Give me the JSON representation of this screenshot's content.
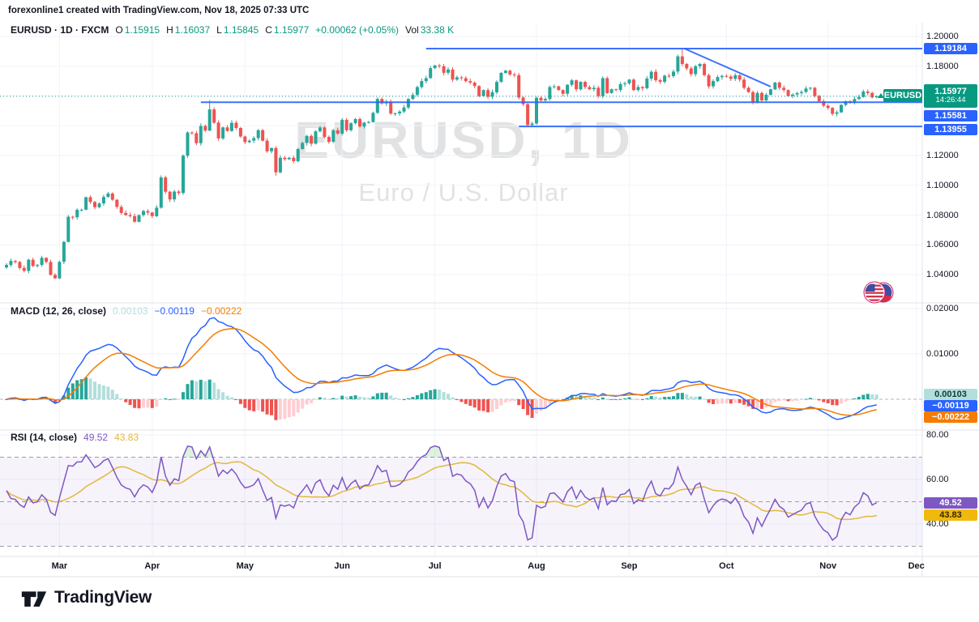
{
  "attribution": "forexonline1 created with TradingView.com, Nov 18, 2025 07:33 UTC",
  "header": {
    "symbol_line": "EURUSD · 1D · FXCM",
    "o_label": "O",
    "o": "1.15915",
    "h_label": "H",
    "h": "1.16037",
    "l_label": "L",
    "l": "1.15845",
    "c_label": "C",
    "c": "1.15977",
    "change": "+0.00062 (+0.05%)",
    "vol_label": "Vol",
    "vol": "33.38 K"
  },
  "watermark": {
    "line1": "EURUSD, 1D",
    "line2": "Euro / U.S. Dollar"
  },
  "badges": {
    "resistance": "1.19184",
    "last_price": "1.15977",
    "last_time": "14:26:44",
    "support_mid": "1.15581",
    "support_low": "1.13955",
    "symbol_label": "EURUSD",
    "macd_hist": "0.00103",
    "macd_line": "−0.00119",
    "macd_signal": "−0.00222",
    "rsi_value": "49.52",
    "rsi_ma_value": "43.83"
  },
  "macd_legend": {
    "title": "MACD (12, 26, close)",
    "hist": "0.00103",
    "macd": "−0.00119",
    "signal": "−0.00222"
  },
  "rsi_legend": {
    "title": "RSI (14, close)",
    "value": "49.52",
    "ma": "43.83"
  },
  "logo": {
    "text": "TradingView"
  },
  "palette": {
    "candle_up": "#26a69a",
    "candle_down": "#ef5350",
    "accent_teal": "#089981",
    "drawing_blue": "#2962ff",
    "macd_line": "#2962ff",
    "signal_line": "#f57c00",
    "hist_above_grow": "#26a69a",
    "hist_above_fall": "#b2dfdb",
    "hist_below_grow": "#ffcdd2",
    "hist_below_fall": "#ef5350",
    "rsi_line": "#7e57c2",
    "rsi_ma_line": "#e2b93b",
    "rsi_badge_bg": "#f0b90b",
    "grid": "#f0f3fa",
    "panel_border": "#e0e3eb",
    "text_dark": "#131722",
    "dashed": "#b2b5be",
    "band_dashed": "#9b9eab",
    "rsi_band_fill": "rgba(126,87,194,0.07)",
    "overbought_fill": "rgba(76,175,80,0.18)",
    "price_badge_bg": "#089981",
    "blue_badge_bg": "#2962ff"
  },
  "chart_data": {
    "type": "candlestick",
    "symbol": "EURUSD",
    "interval": "1D",
    "exchange": "FXCM",
    "last_bar": {
      "open": 1.15915,
      "high": 1.16037,
      "low": 1.15845,
      "close": 1.15977,
      "change": "+0.00062 (+0.05%)",
      "volume": "33.38 K"
    },
    "closes": [
      1.0465,
      1.0492,
      1.0485,
      1.0445,
      1.0425,
      1.05,
      1.0458,
      1.0465,
      1.0513,
      1.0485,
      1.0398,
      1.0375,
      1.0486,
      1.062,
      1.0789,
      1.0785,
      1.0835,
      1.0836,
      1.092,
      1.0888,
      1.0853,
      1.0878,
      1.0922,
      1.0945,
      1.0903,
      1.0855,
      1.0815,
      1.08,
      1.0793,
      1.0755,
      1.08,
      1.0827,
      1.0817,
      1.0793,
      1.085,
      1.1053,
      1.0957,
      1.0905,
      1.0958,
      1.0948,
      1.1199,
      1.1355,
      1.135,
      1.1283,
      1.1399,
      1.1368,
      1.151,
      1.1421,
      1.1315,
      1.1389,
      1.1365,
      1.142,
      1.1385,
      1.1328,
      1.129,
      1.13,
      1.1317,
      1.137,
      1.13,
      1.1228,
      1.125,
      1.1087,
      1.1185,
      1.1175,
      1.1185,
      1.1162,
      1.1244,
      1.1285,
      1.1332,
      1.128,
      1.1363,
      1.1388,
      1.1325,
      1.1292,
      1.137,
      1.1347,
      1.144,
      1.137,
      1.1417,
      1.1445,
      1.1395,
      1.142,
      1.1425,
      1.1487,
      1.158,
      1.155,
      1.1562,
      1.1482,
      1.1483,
      1.1495,
      1.1523,
      1.158,
      1.1607,
      1.166,
      1.17,
      1.172,
      1.1787,
      1.1805,
      1.18,
      1.1756,
      1.1778,
      1.171,
      1.1725,
      1.172,
      1.17,
      1.169,
      1.1667,
      1.16,
      1.164,
      1.1595,
      1.1625,
      1.1695,
      1.1755,
      1.177,
      1.1745,
      1.174,
      1.159,
      1.1545,
      1.1405,
      1.1415,
      1.1588,
      1.157,
      1.158,
      1.166,
      1.1665,
      1.164,
      1.1615,
      1.1675,
      1.1705,
      1.1645,
      1.1695,
      1.166,
      1.1645,
      1.1655,
      1.16,
      1.172,
      1.162,
      1.1645,
      1.164,
      1.168,
      1.1685,
      1.171,
      1.164,
      1.166,
      1.1652,
      1.1717,
      1.1763,
      1.1706,
      1.1695,
      1.1736,
      1.1734,
      1.1764,
      1.1866,
      1.1815,
      1.1785,
      1.1747,
      1.18,
      1.1815,
      1.174,
      1.1665,
      1.17,
      1.1727,
      1.1735,
      1.173,
      1.1715,
      1.174,
      1.171,
      1.1655,
      1.1626,
      1.156,
      1.162,
      1.157,
      1.1608,
      1.1645,
      1.169,
      1.1655,
      1.164,
      1.16,
      1.161,
      1.162,
      1.1627,
      1.165,
      1.1655,
      1.16,
      1.1565,
      1.1535,
      1.152,
      1.148,
      1.149,
      1.154,
      1.1565,
      1.1555,
      1.158,
      1.1593,
      1.163,
      1.162,
      1.159,
      1.15977
    ],
    "wick_overrides": {
      "46": {
        "h": 1.1573
      },
      "61": {
        "l": 1.1065
      },
      "118": {
        "l": 1.1392
      },
      "119": {
        "l": 1.1398
      },
      "153": {
        "h": 1.1919
      },
      "187": {
        "l": 1.1468
      },
      "197": {
        "o": 1.15915,
        "h": 1.16037,
        "l": 1.15845
      }
    },
    "time_axis": {
      "months": [
        {
          "label": "Mar",
          "index": 12
        },
        {
          "label": "Apr",
          "index": 33
        },
        {
          "label": "May",
          "index": 54
        },
        {
          "label": "Jun",
          "index": 76
        },
        {
          "label": "Jul",
          "index": 97
        },
        {
          "label": "Aug",
          "index": 120
        },
        {
          "label": "Sep",
          "index": 141
        },
        {
          "label": "Oct",
          "index": 163
        },
        {
          "label": "Nov",
          "index": 186
        },
        {
          "label": "Dec",
          "index": 206
        }
      ]
    },
    "price_axis": {
      "gridline_prices": [
        1.2,
        1.18,
        1.16,
        1.14,
        1.12,
        1.1,
        1.08,
        1.06,
        1.04
      ],
      "visible_labels": [
        {
          "v": 1.2,
          "t": "1.20000"
        },
        {
          "v": 1.18,
          "t": "1.18000"
        },
        {
          "v": 1.12,
          "t": "1.12000"
        },
        {
          "v": 1.1,
          "t": "1.10000"
        },
        {
          "v": 1.08,
          "t": "1.08000"
        },
        {
          "v": 1.06,
          "t": "1.06000"
        },
        {
          "v": 1.04,
          "t": "1.04000"
        }
      ],
      "last_price": 1.15977
    },
    "drawings": {
      "hlines": [
        {
          "price": 1.19184,
          "from_index": 95
        },
        {
          "price": 1.15581,
          "from_index": 44
        },
        {
          "price": 1.13955,
          "from_index": 116
        }
      ],
      "trendline": {
        "i1": 153.5,
        "p1": 1.19184,
        "i2": 173,
        "p2": 1.1663
      }
    },
    "macd_panel": {
      "settings": "MACD (12, 26, close)",
      "fast": 12,
      "slow": 26,
      "signal": 9,
      "last_values": {
        "hist": 0.00103,
        "macd": -0.00119,
        "signal": -0.00222
      },
      "axis_labels": [
        {
          "v": 0.02,
          "t": "0.02000"
        },
        {
          "v": 0.01,
          "t": "0.01000"
        }
      ]
    },
    "rsi_panel": {
      "settings": "RSI (14, close)",
      "length": 14,
      "last_values": {
        "rsi": 49.52,
        "rsi_ma": 43.83
      },
      "bands": {
        "upper": 70,
        "middle": 50,
        "lower": 30
      },
      "axis_labels": [
        {
          "v": 80,
          "t": "80.00"
        },
        {
          "v": 60,
          "t": "60.00"
        },
        {
          "v": 40,
          "t": "40.00"
        }
      ]
    }
  }
}
